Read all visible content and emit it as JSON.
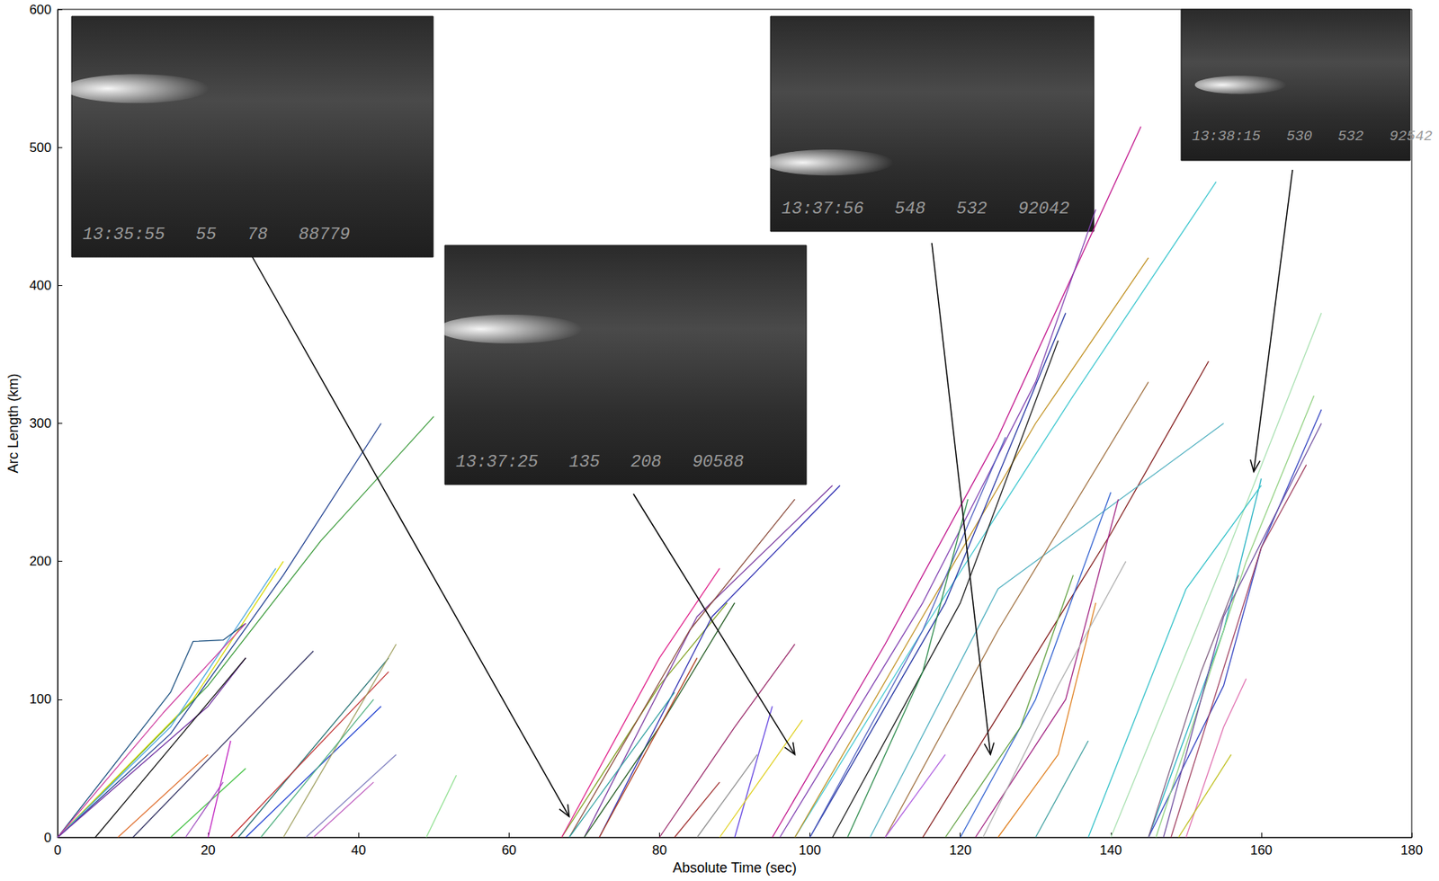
{
  "chart_data": {
    "type": "line",
    "x_label": "Absolute Time (sec)",
    "y_label": "Arc Length (km)",
    "xlim": [
      0,
      180
    ],
    "xticks": [
      0,
      20,
      40,
      60,
      80,
      100,
      120,
      140,
      160,
      180
    ],
    "ylim": [
      0,
      600
    ],
    "yticks": [
      0,
      100,
      200,
      300,
      400,
      500,
      600
    ],
    "grid": false,
    "annotations": [
      {
        "label": "13:35:55   55   78   88779",
        "arrow_to": [
          68,
          15
        ]
      },
      {
        "label": "13:37:25   135   208   90588",
        "arrow_to": [
          98,
          60
        ]
      },
      {
        "label": "13:37:56   548   532   92042",
        "arrow_to": [
          124,
          60
        ]
      },
      {
        "label": "13:38:15   530   532   92542",
        "arrow_to": [
          159,
          265
        ]
      }
    ],
    "series": [
      {
        "color": "#1f3f8f",
        "values": [
          [
            0,
            0
          ],
          [
            15,
            75
          ],
          [
            30,
            190
          ],
          [
            43,
            300
          ]
        ]
      },
      {
        "color": "#3a9a3a",
        "values": [
          [
            0,
            0
          ],
          [
            20,
            110
          ],
          [
            35,
            215
          ],
          [
            50,
            305
          ]
        ]
      },
      {
        "color": "#d8d800",
        "values": [
          [
            0,
            0
          ],
          [
            18,
            100
          ],
          [
            30,
            200
          ]
        ]
      },
      {
        "color": "#4fa8e0",
        "values": [
          [
            0,
            0
          ],
          [
            15,
            80
          ],
          [
            29,
            195
          ]
        ]
      },
      {
        "color": "#1a4f7f",
        "values": [
          [
            0,
            0
          ],
          [
            15,
            105
          ],
          [
            18,
            142
          ],
          [
            22,
            143
          ],
          [
            25,
            155
          ]
        ]
      },
      {
        "color": "#d040a0",
        "values": [
          [
            0,
            0
          ],
          [
            14,
            90
          ],
          [
            25,
            155
          ]
        ]
      },
      {
        "color": "#7030a0",
        "values": [
          [
            0,
            0
          ],
          [
            20,
            95
          ],
          [
            25,
            130
          ]
        ]
      },
      {
        "color": "#101010",
        "values": [
          [
            5,
            0
          ],
          [
            25,
            130
          ]
        ]
      },
      {
        "color": "#303060",
        "values": [
          [
            10,
            0
          ],
          [
            34,
            135
          ]
        ]
      },
      {
        "color": "#e07030",
        "values": [
          [
            8,
            0
          ],
          [
            20,
            60
          ]
        ]
      },
      {
        "color": "#40c040",
        "values": [
          [
            15,
            0
          ],
          [
            25,
            50
          ]
        ]
      },
      {
        "color": "#a050c0",
        "values": [
          [
            17,
            0
          ],
          [
            22,
            40
          ]
        ]
      },
      {
        "color": "#207070",
        "values": [
          [
            24,
            0
          ],
          [
            44,
            130
          ]
        ]
      },
      {
        "color": "#c03030",
        "values": [
          [
            23,
            0
          ],
          [
            44,
            120
          ]
        ]
      },
      {
        "color": "#2040d0",
        "values": [
          [
            25,
            0
          ],
          [
            43,
            95
          ]
        ]
      },
      {
        "color": "#a0a060",
        "values": [
          [
            30,
            0
          ],
          [
            45,
            140
          ]
        ]
      },
      {
        "color": "#50b080",
        "values": [
          [
            27,
            0
          ],
          [
            42,
            100
          ]
        ]
      },
      {
        "color": "#8080c0",
        "values": [
          [
            33,
            0
          ],
          [
            45,
            60
          ]
        ]
      },
      {
        "color": "#c060c0",
        "values": [
          [
            34,
            0
          ],
          [
            42,
            40
          ]
        ]
      },
      {
        "color": "#90e090",
        "values": [
          [
            49,
            0
          ],
          [
            53,
            45
          ]
        ]
      },
      {
        "color": "#c020c0",
        "values": [
          [
            20,
            0
          ],
          [
            23,
            70
          ]
        ]
      },
      {
        "color": "#80a020",
        "values": [
          [
            67,
            0
          ],
          [
            80,
            110
          ],
          [
            89,
            170
          ]
        ]
      },
      {
        "color": "#e0208a",
        "values": [
          [
            67,
            0
          ],
          [
            80,
            130
          ],
          [
            88,
            195
          ]
        ]
      },
      {
        "color": "#7a3aa0",
        "values": [
          [
            70,
            0
          ],
          [
            85,
            160
          ],
          [
            103,
            255
          ]
        ]
      },
      {
        "color": "#2a2ab0",
        "values": [
          [
            72,
            0
          ],
          [
            87,
            160
          ],
          [
            104,
            255
          ]
        ]
      },
      {
        "color": "#8a4a3a",
        "values": [
          [
            68,
            0
          ],
          [
            84,
            150
          ],
          [
            98,
            245
          ]
        ]
      },
      {
        "color": "#205a20",
        "values": [
          [
            70,
            0
          ],
          [
            80,
            80
          ],
          [
            90,
            170
          ]
        ]
      },
      {
        "color": "#b04020",
        "values": [
          [
            72,
            0
          ],
          [
            83,
            110
          ],
          [
            85,
            130
          ]
        ]
      },
      {
        "color": "#30a0a0",
        "values": [
          [
            68,
            0
          ],
          [
            76,
            60
          ],
          [
            82,
            105
          ]
        ]
      },
      {
        "color": "#9a2a6a",
        "values": [
          [
            80,
            0
          ],
          [
            90,
            80
          ],
          [
            98,
            140
          ]
        ]
      },
      {
        "color": "#909090",
        "values": [
          [
            85,
            0
          ],
          [
            93,
            60
          ]
        ]
      },
      {
        "color": "#6040e0",
        "values": [
          [
            90,
            0
          ],
          [
            95,
            95
          ]
        ]
      },
      {
        "color": "#a03030",
        "values": [
          [
            82,
            0
          ],
          [
            88,
            40
          ]
        ]
      },
      {
        "color": "#e0d020",
        "values": [
          [
            88,
            0
          ],
          [
            99,
            85
          ]
        ]
      },
      {
        "color": "#c0108a",
        "values": [
          [
            95,
            0
          ],
          [
            110,
            140
          ],
          [
            125,
            290
          ],
          [
            144,
            515
          ]
        ]
      },
      {
        "color": "#40c8d0",
        "values": [
          [
            98,
            0
          ],
          [
            115,
            150
          ],
          [
            135,
            320
          ],
          [
            154,
            475
          ]
        ]
      },
      {
        "color": "#c09020",
        "values": [
          [
            98,
            0
          ],
          [
            115,
            160
          ],
          [
            130,
            300
          ],
          [
            145,
            420
          ]
        ]
      },
      {
        "color": "#8040b0",
        "values": [
          [
            96,
            0
          ],
          [
            115,
            170
          ],
          [
            130,
            330
          ],
          [
            138,
            455
          ]
        ]
      },
      {
        "color": "#2030a0",
        "values": [
          [
            100,
            0
          ],
          [
            118,
            170
          ],
          [
            134,
            380
          ]
        ]
      },
      {
        "color": "#181818",
        "values": [
          [
            103,
            0
          ],
          [
            120,
            170
          ],
          [
            133,
            360
          ]
        ]
      },
      {
        "color": "#5060c0",
        "values": [
          [
            100,
            0
          ],
          [
            115,
            150
          ],
          [
            126,
            290
          ]
        ]
      },
      {
        "color": "#2a8a4a",
        "values": [
          [
            105,
            0
          ],
          [
            115,
            120
          ],
          [
            121,
            245
          ]
        ]
      },
      {
        "color": "#801818",
        "values": [
          [
            115,
            0
          ],
          [
            140,
            220
          ],
          [
            153,
            345
          ]
        ]
      },
      {
        "color": "#50b0c0",
        "values": [
          [
            108,
            0
          ],
          [
            125,
            180
          ],
          [
            155,
            300
          ]
        ]
      },
      {
        "color": "#a07040",
        "values": [
          [
            110,
            0
          ],
          [
            125,
            150
          ],
          [
            145,
            330
          ]
        ]
      },
      {
        "color": "#3060d0",
        "values": [
          [
            120,
            0
          ],
          [
            130,
            100
          ],
          [
            140,
            250
          ]
        ]
      },
      {
        "color": "#60a040",
        "values": [
          [
            118,
            0
          ],
          [
            128,
            80
          ],
          [
            135,
            190
          ]
        ]
      },
      {
        "color": "#a02080",
        "values": [
          [
            122,
            0
          ],
          [
            134,
            100
          ],
          [
            141,
            245
          ]
        ]
      },
      {
        "color": "#e08020",
        "values": [
          [
            125,
            0
          ],
          [
            133,
            60
          ],
          [
            138,
            170
          ]
        ]
      },
      {
        "color": "#b060e0",
        "values": [
          [
            110,
            0
          ],
          [
            118,
            60
          ]
        ]
      },
      {
        "color": "#40a0a0",
        "values": [
          [
            130,
            0
          ],
          [
            137,
            70
          ]
        ]
      },
      {
        "color": "#b0b0b0",
        "values": [
          [
            123,
            0
          ],
          [
            133,
            110
          ],
          [
            142,
            200
          ]
        ]
      },
      {
        "color": "#20b0c0",
        "values": [
          [
            145,
            0
          ],
          [
            155,
            150
          ],
          [
            160,
            260
          ]
        ]
      },
      {
        "color": "#3040c0",
        "values": [
          [
            145,
            0
          ],
          [
            155,
            110
          ],
          [
            160,
            210
          ],
          [
            168,
            310
          ]
        ]
      },
      {
        "color": "#90d080",
        "values": [
          [
            146,
            0
          ],
          [
            158,
            200
          ],
          [
            167,
            320
          ]
        ]
      },
      {
        "color": "#7050a0",
        "values": [
          [
            147,
            0
          ],
          [
            155,
            160
          ],
          [
            168,
            300
          ]
        ]
      },
      {
        "color": "#a04060",
        "values": [
          [
            148,
            0
          ],
          [
            160,
            210
          ],
          [
            166,
            270
          ]
        ]
      },
      {
        "color": "#a8e0b0",
        "values": [
          [
            140,
            0
          ],
          [
            155,
            200
          ],
          [
            168,
            380
          ]
        ]
      },
      {
        "color": "#e070b0",
        "values": [
          [
            150,
            0
          ],
          [
            155,
            80
          ],
          [
            158,
            115
          ]
        ]
      },
      {
        "color": "#c0c020",
        "values": [
          [
            149,
            0
          ],
          [
            156,
            60
          ]
        ]
      },
      {
        "color": "#30c0c8",
        "values": [
          [
            137,
            0
          ],
          [
            150,
            180
          ],
          [
            160,
            255
          ]
        ]
      },
      {
        "color": "#806080",
        "values": [
          [
            145,
            0
          ],
          [
            152,
            120
          ],
          [
            157,
            190
          ]
        ]
      }
    ]
  }
}
